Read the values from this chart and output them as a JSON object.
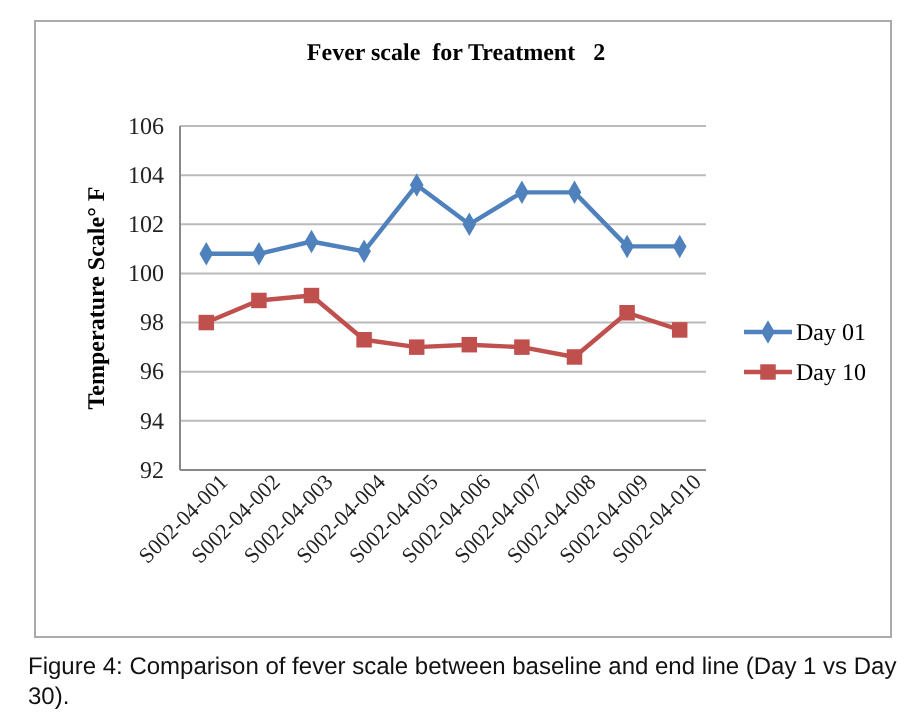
{
  "chart_data": {
    "type": "line",
    "title": "Fever scale  for Treatment   2",
    "ylabel": "Temperature Scale° F",
    "categories": [
      "S002-04-001",
      "S002-04-002",
      "S002-04-003",
      "S002-04-004",
      "S002-04-005",
      "S002-04-006",
      "S002-04-007",
      "S002-04-008",
      "S002-04-009",
      "S002-04-010"
    ],
    "series": [
      {
        "name": "Day 01",
        "color": "#4f81bd",
        "marker": "diamond",
        "values": [
          100.8,
          100.8,
          101.3,
          100.9,
          103.6,
          102.0,
          103.3,
          103.3,
          101.1,
          101.1
        ]
      },
      {
        "name": "Day 10",
        "color": "#c0504d",
        "marker": "square",
        "values": [
          98.0,
          98.9,
          99.1,
          97.3,
          97.0,
          97.1,
          97.0,
          96.6,
          98.4,
          97.7
        ]
      }
    ],
    "ylim": [
      92,
      106
    ],
    "yticks": [
      92,
      94,
      96,
      98,
      100,
      102,
      104,
      106
    ],
    "grid": "y",
    "legend": "right",
    "annotations": [
      "Figure 4: Comparison of fever scale between baseline and end line (Day 1 vs Day 30)."
    ]
  }
}
